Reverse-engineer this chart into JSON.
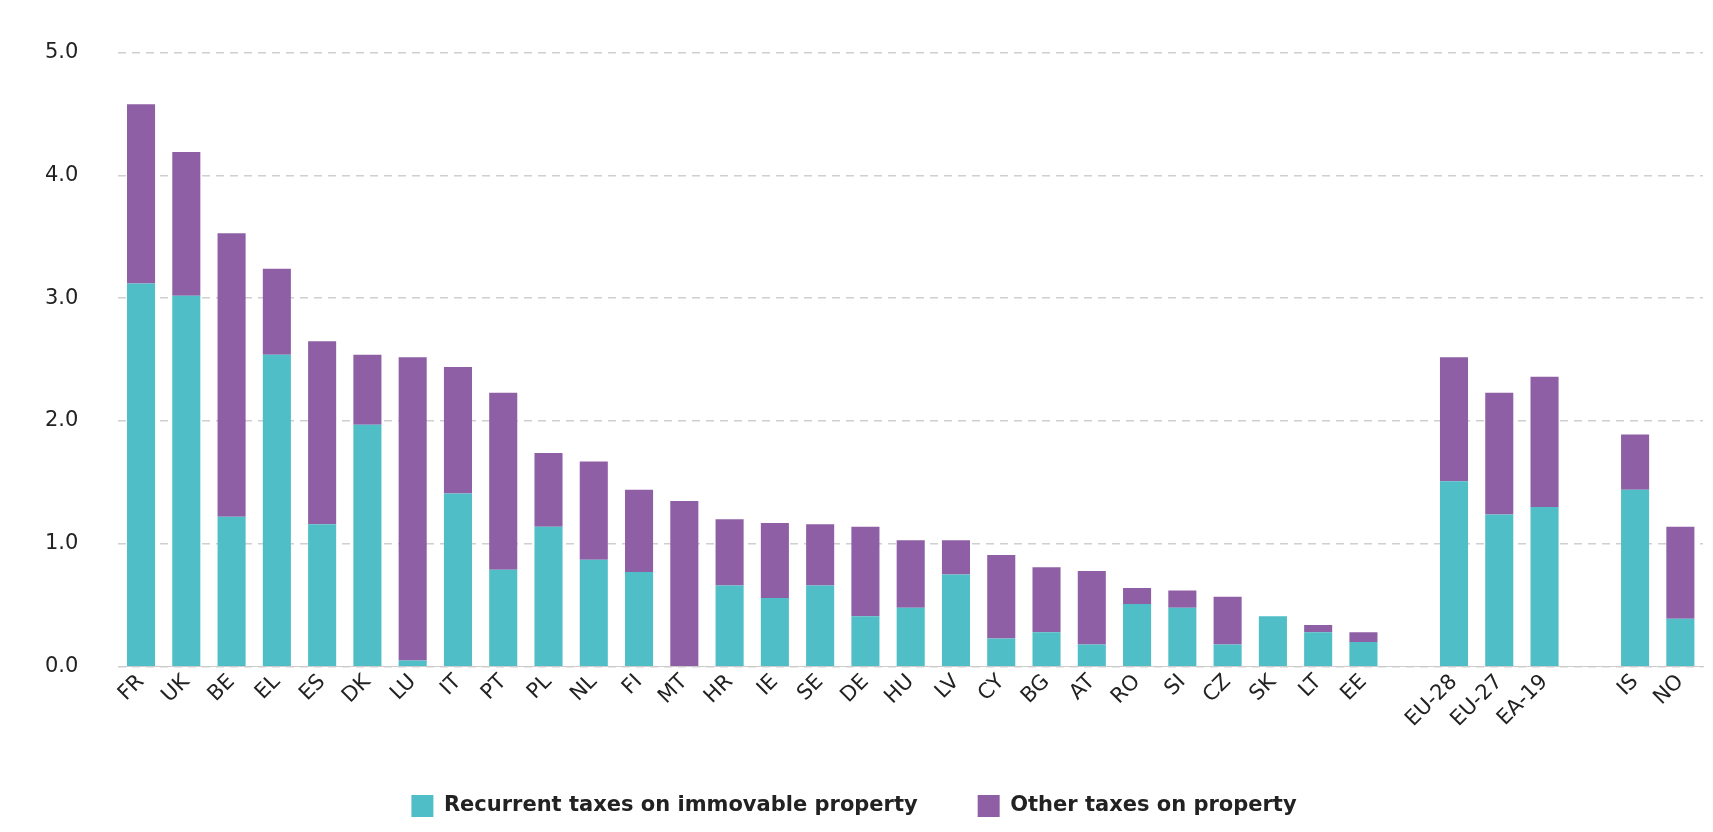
{
  "chart_data": {
    "type": "bar",
    "stacked": true,
    "categories": [
      "FR",
      "UK",
      "BE",
      "EL",
      "ES",
      "DK",
      "LU",
      "IT",
      "PT",
      "PL",
      "NL",
      "FI",
      "MT",
      "HR",
      "IE",
      "SE",
      "DE",
      "HU",
      "LV",
      "CY",
      "BG",
      "AT",
      "RO",
      "SI",
      "CZ",
      "SK",
      "LT",
      "EE",
      null,
      "EU-28",
      "EU-27",
      "EA-19",
      null,
      "IS",
      "NO"
    ],
    "series": [
      {
        "name": "Recurrent taxes on immovable property",
        "color": "#4fbec6",
        "values": [
          3.12,
          3.02,
          1.22,
          2.54,
          1.16,
          1.97,
          0.05,
          1.41,
          0.79,
          1.14,
          0.87,
          0.77,
          0,
          0.66,
          0.56,
          0.66,
          0.41,
          0.48,
          0.75,
          0.23,
          0.28,
          0.18,
          0.51,
          0.48,
          0.18,
          0.41,
          0.28,
          0.2,
          null,
          1.51,
          1.24,
          1.3,
          null,
          1.44,
          0.39
        ]
      },
      {
        "name": "Other taxes on property",
        "color": "#8f5fa5",
        "values": [
          1.46,
          1.17,
          2.31,
          0.7,
          1.49,
          0.57,
          2.47,
          1.03,
          1.44,
          0.6,
          0.8,
          0.67,
          1.35,
          0.54,
          0.61,
          0.5,
          0.73,
          0.55,
          0.28,
          0.68,
          0.53,
          0.6,
          0.13,
          0.14,
          0.39,
          0,
          0.06,
          0.08,
          null,
          1.01,
          0.99,
          1.06,
          null,
          0.45,
          0.75
        ]
      }
    ],
    "ylim": [
      0,
      5
    ],
    "yticks": [
      {
        "value": 0,
        "label": "0.0"
      },
      {
        "value": 1,
        "label": "1.0"
      },
      {
        "value": 2,
        "label": "2.0"
      },
      {
        "value": 3,
        "label": "3.0"
      },
      {
        "value": 4,
        "label": "4.0"
      },
      {
        "value": 5,
        "label": "5.0"
      }
    ],
    "grid": "y",
    "legend": "bottom"
  }
}
